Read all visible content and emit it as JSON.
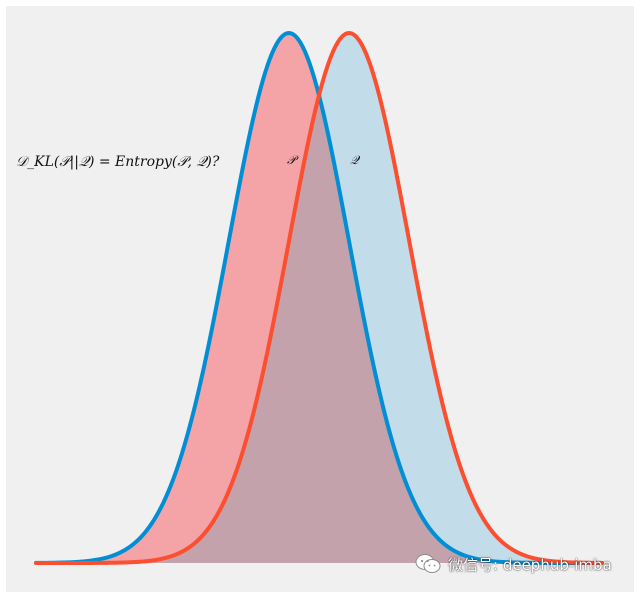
{
  "chart_data": {
    "type": "area",
    "title": "",
    "annotation": "𝒟_KL(𝒫||𝒬) = Entropy(𝒫, 𝒬)?",
    "x": {
      "min": -4.7,
      "max": 4.7
    },
    "series": [
      {
        "name": "𝒫",
        "mean": -0.5,
        "std": 1.0,
        "line_color": "#008fd5",
        "fill_color": "#f4a3a7"
      },
      {
        "name": "𝒬",
        "mean": 0.5,
        "std": 1.0,
        "line_color": "#fc4f30",
        "fill_color": "#c2dcea"
      }
    ],
    "overlap_fill_color": "#c4a2ac",
    "background_color": "#f0f0f0",
    "grid": false,
    "axes_visible": false
  },
  "watermark": {
    "text": "微信号: deephub-imba",
    "icon": "wechat-icon"
  }
}
